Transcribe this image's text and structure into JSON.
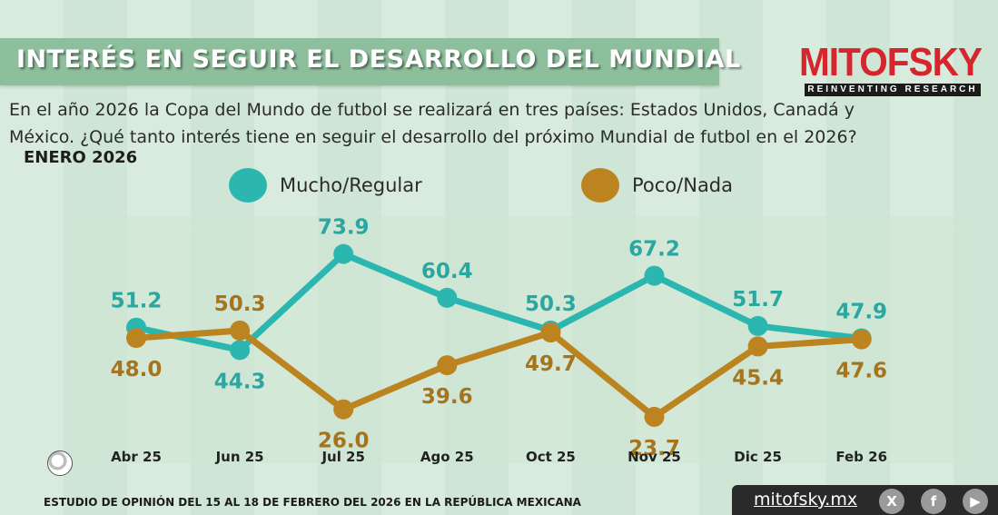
{
  "header": {
    "title": "INTERÉS EN SEGUIR EL DESARROLLO DEL MUNDIAL",
    "brand": "MITOFSKY",
    "brand_tagline": "REINVENTING RESEARCH"
  },
  "question": {
    "line1": "En el año 2026 la Copa del Mundo de futbol se realizará en tres países:  Estados Unidos, Canadá y",
    "line2": "México. ¿Qué tanto interés tiene en seguir el desarrollo del próximo Mundial de futbol en el 2026?"
  },
  "period_label": "ENERO 2026",
  "colors": {
    "mucho": "#2bb7b0",
    "poco": "#bc8420",
    "label_mucho": "#2aa7a1",
    "label_poco": "#a5741c"
  },
  "footer": {
    "study_note": "ESTUDIO DE OPINIÓN DEL 15 AL 18  DE FEBRERO DEL 2026 EN LA REPÚBLICA MEXICANA",
    "site": "mitofsky.mx",
    "icons": [
      "x-icon",
      "facebook-icon",
      "youtube-icon"
    ],
    "icon_glyphs": [
      "X",
      "f",
      "▶"
    ]
  },
  "chart_data": {
    "type": "line",
    "title": "INTERÉS EN SEGUIR EL DESARROLLO DEL MUNDIAL",
    "xlabel": "",
    "ylabel": "",
    "ylim": [
      15,
      85
    ],
    "categories": [
      "Abr 25",
      "Jun 25",
      "Jul 25",
      "Ago 25",
      "Oct 25",
      "Nov 25",
      "Dic 25",
      "Feb 26"
    ],
    "series": [
      {
        "name": "Mucho/Regular",
        "values": [
          51.2,
          44.3,
          73.9,
          60.4,
          50.3,
          67.2,
          51.7,
          47.9
        ]
      },
      {
        "name": "Poco/Nada",
        "values": [
          48.0,
          50.3,
          26.0,
          39.6,
          49.7,
          23.7,
          45.4,
          47.6
        ]
      }
    ],
    "value_labels": {
      "Mucho/Regular": [
        "51.2",
        "44.3",
        "73.9",
        "60.4",
        "50.3",
        "67.2",
        "51.7",
        "47.9"
      ],
      "Poco/Nada": [
        "48.0",
        "50.3",
        "26.0",
        "39.6",
        "49.7",
        "23.7",
        "45.4",
        "47.6"
      ]
    },
    "legend_position": "top"
  }
}
